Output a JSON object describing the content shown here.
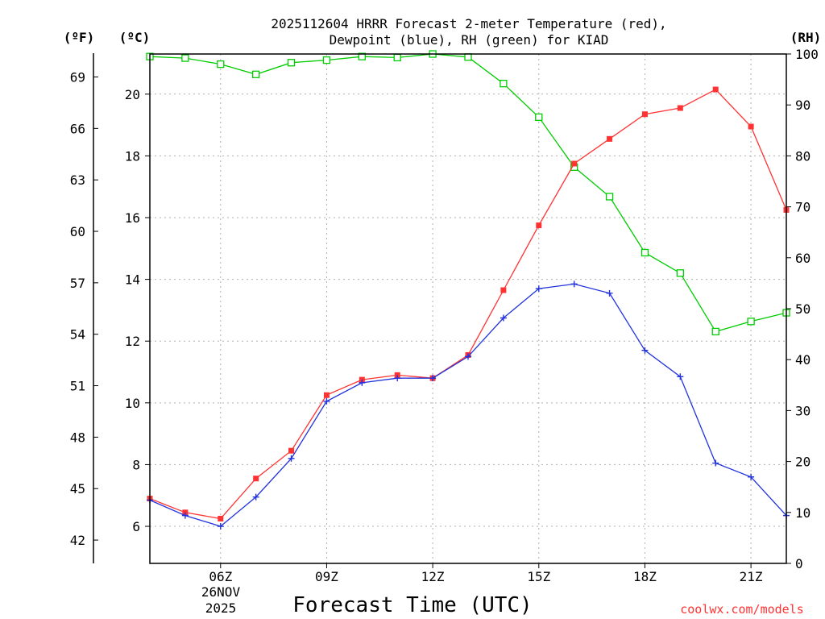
{
  "chart_data": {
    "type": "line",
    "title_line1": "2025112604 HRRR Forecast 2-meter Temperature (red),",
    "title_line2": "Dewpoint (blue), RH (green) for KIAD",
    "unit_f": "(ºF)",
    "unit_c": "(ºC)",
    "unit_rh": "(RH)",
    "xlabel": "Forecast Time (UTC)",
    "credit": "coolwx.com/models",
    "date_line1": "26NOV",
    "date_line2": "2025",
    "x_hours": [
      4,
      5,
      6,
      7,
      8,
      9,
      10,
      11,
      12,
      13,
      14,
      15,
      16,
      17,
      18,
      19,
      20,
      21,
      22
    ],
    "xlim": [
      4,
      22
    ],
    "x_ticks": [
      {
        "hour": 6,
        "label": "06Z"
      },
      {
        "hour": 9,
        "label": "09Z"
      },
      {
        "hour": 12,
        "label": "12Z"
      },
      {
        "hour": 15,
        "label": "15Z"
      },
      {
        "hour": 18,
        "label": "18Z"
      },
      {
        "hour": 21,
        "label": "21Z"
      }
    ],
    "ylim_c": [
      4.8,
      21.3
    ],
    "y_ticks_c": [
      "6",
      "8",
      "10",
      "12",
      "14",
      "16",
      "18",
      "20"
    ],
    "y_ticks_f": [
      "42",
      "45",
      "48",
      "51",
      "54",
      "57",
      "60",
      "63",
      "66",
      "69"
    ],
    "ylim_rh": [
      0,
      100
    ],
    "y_ticks_rh": [
      "0",
      "10",
      "20",
      "30",
      "40",
      "50",
      "60",
      "70",
      "80",
      "90",
      "100"
    ],
    "colors": {
      "temperature": "#ff3333",
      "dewpoint": "#2233dd",
      "rh": "#00cc00"
    },
    "series": [
      {
        "name": "Temperature (°C)",
        "axis": "c",
        "values": [
          6.9,
          6.45,
          6.25,
          7.55,
          8.45,
          10.25,
          10.75,
          10.9,
          10.8,
          11.55,
          13.65,
          15.75,
          17.75,
          18.55,
          19.35,
          19.55,
          20.15,
          18.95,
          16.25
        ]
      },
      {
        "name": "Dewpoint (°C)",
        "axis": "c",
        "values": [
          6.85,
          6.35,
          6.0,
          6.95,
          8.2,
          10.05,
          10.65,
          10.8,
          10.8,
          11.5,
          12.75,
          13.7,
          13.85,
          13.55,
          11.7,
          10.85,
          8.05,
          7.6,
          6.35
        ]
      },
      {
        "name": "RH (%)",
        "axis": "rh",
        "values": [
          99.5,
          99.2,
          98.0,
          96.0,
          98.3,
          98.8,
          99.5,
          99.3,
          100.0,
          99.4,
          94.2,
          87.6,
          77.8,
          72.0,
          61.0,
          57.0,
          45.5,
          47.5,
          49.2
        ]
      }
    ]
  }
}
